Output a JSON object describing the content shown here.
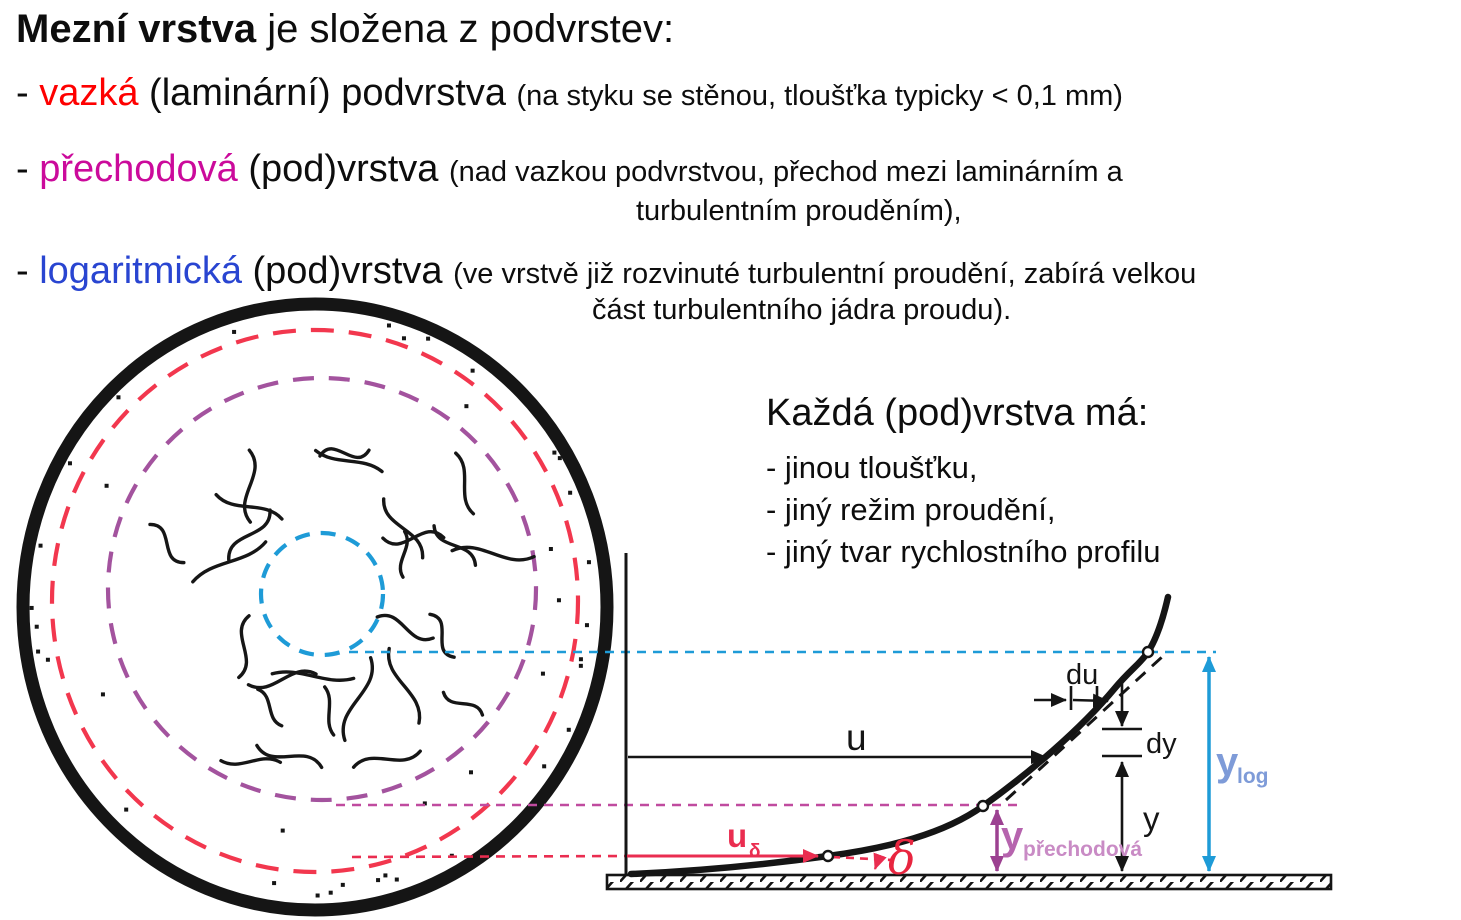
{
  "heading": {
    "lead": "Mezní vrstva",
    "rest": " je složena z podvrstev:"
  },
  "bullets": [
    {
      "dash": "- ",
      "term": "vazká",
      "term_color": "#fe0000",
      "main": " (laminární) podvrstva ",
      "note": "(na styku se stěnou, tloušťka typicky < 0,1 mm)"
    },
    {
      "dash": "- ",
      "term": "přechodová",
      "term_color": "#cb0a9b",
      "main": " (pod)vrstva ",
      "note": "(nad vazkou podvrstvou, přechod mezi laminárním a",
      "note2": "turbulentním prouděním),"
    },
    {
      "dash": "- ",
      "term": "logaritmická",
      "term_color": "#2945d1",
      "main": " (pod)vrstva ",
      "note": "(ve vrstvě již rozvinuté turbulentní proudění, zabírá velkou",
      "note2": "část turbulentního jádra proudu)."
    }
  ],
  "side_panel": {
    "title": "Každá (pod)vrstva má:",
    "items": [
      "- jinou tloušťku,",
      "- jiný režim proudění,",
      "- jiný tvar rychlostního profilu"
    ]
  },
  "diagram": {
    "u": "u",
    "du": "du",
    "dy": "dy",
    "y": "y",
    "u_delta_base": "u",
    "u_delta_sub": "δ",
    "delta": "δ",
    "y_trans_base": "y",
    "y_trans_sub": "přechodová",
    "y_log_base": "y",
    "y_log_sub": "log"
  },
  "colors": {
    "red_term": "#fe0000",
    "magenta_term": "#cb0a9b",
    "blue_term": "#2945d1",
    "pipe_wall": "#151515",
    "viscous_ring_red": "#f2374e",
    "transition_ring_purple": "#a3539e",
    "core_ring_blue": "#1e9bd7",
    "red_accent": "#ea2d50",
    "purple_accent": "#9c4191",
    "purple_label": "#b664ae",
    "purple_label_light": "#c98bc5",
    "blue_accent": "#1e9bd7",
    "blue_label": "#7e9bd8"
  },
  "decoration": {
    "seed": 13,
    "squiggle_count": 26,
    "outer_dot_count": 30,
    "inner_dot_count": 9
  }
}
